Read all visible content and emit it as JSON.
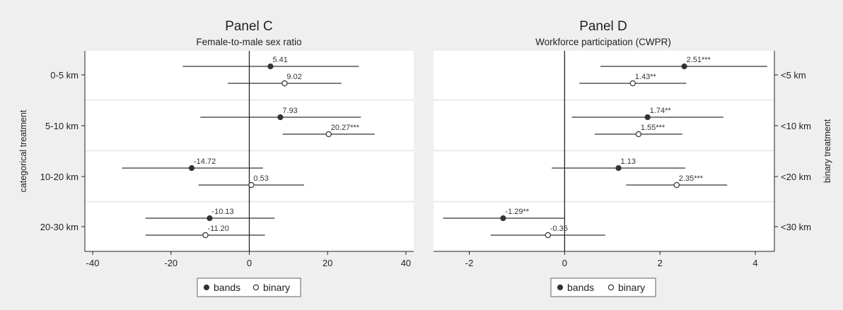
{
  "figure": {
    "left_axis_title": "categorical treatment",
    "right_axis_title": "binary treatment",
    "colors": {
      "background": "#efefef",
      "plot_bg": "#ffffff",
      "marker_fill_bands": "#333333",
      "marker_fill_binary": "#ffffff",
      "line": "#333333"
    }
  },
  "chart_data": [
    {
      "type": "scatter",
      "title": "Panel C",
      "subtitle": "Female-to-male sex ratio",
      "xlim": [
        -42,
        42
      ],
      "xticks": [
        "-40",
        "-20",
        "0",
        "20",
        "40"
      ],
      "categories": [
        "0-5 km",
        "5-10 km",
        "10-20 km",
        "20-30 km"
      ],
      "legend": {
        "position": "bottom",
        "items": [
          "bands",
          "binary"
        ]
      },
      "series": [
        {
          "name": "bands",
          "values": [
            5.41,
            7.93,
            -14.72,
            -10.13
          ],
          "ci_low": [
            -17,
            -12.5,
            -32.5,
            -26.5
          ],
          "ci_high": [
            28,
            28.5,
            3.5,
            6.5
          ],
          "labels": [
            "5.41",
            "7.93",
            "-14.72",
            "-10.13"
          ]
        },
        {
          "name": "binary",
          "values": [
            9.02,
            20.27,
            0.53,
            -11.2
          ],
          "ci_low": [
            -5.5,
            8.5,
            -13,
            -26.5
          ],
          "ci_high": [
            23.5,
            32,
            14,
            4
          ],
          "labels": [
            "9.02",
            "20.27***",
            "0.53",
            "-11.20"
          ]
        }
      ]
    },
    {
      "type": "scatter",
      "title": "Panel D",
      "subtitle": "Workforce participation (CWPR)",
      "xlim": [
        -2.75,
        4.4
      ],
      "xticks": [
        "-2",
        "0",
        "2",
        "4"
      ],
      "categories": [
        "<5 km",
        "<10 km",
        "<20 km",
        "<30 km"
      ],
      "legend": {
        "position": "bottom",
        "items": [
          "bands",
          "binary"
        ]
      },
      "series": [
        {
          "name": "bands",
          "values": [
            2.51,
            1.74,
            1.13,
            -1.29
          ],
          "ci_low": [
            0.75,
            0.15,
            -0.27,
            -2.55
          ],
          "ci_high": [
            4.25,
            3.33,
            2.53,
            0
          ],
          "labels": [
            "2.51***",
            "1.74**",
            "1.13",
            "-1.29**"
          ]
        },
        {
          "name": "binary",
          "values": [
            1.43,
            1.55,
            2.35,
            -0.35
          ],
          "ci_low": [
            0.31,
            0.63,
            1.29,
            -1.55
          ],
          "ci_high": [
            2.55,
            2.47,
            3.41,
            0.85
          ],
          "labels": [
            "1.43**",
            "1.55***",
            "2.35***",
            "-0.35"
          ]
        }
      ]
    }
  ]
}
